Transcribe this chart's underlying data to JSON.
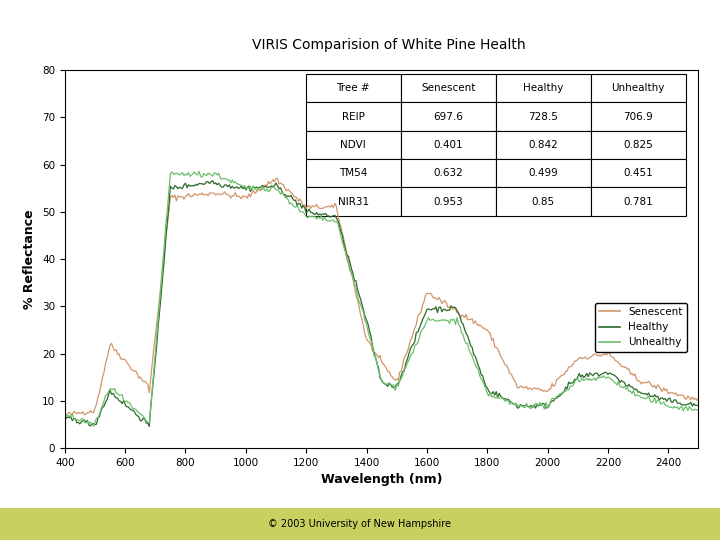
{
  "title": "VIRIS Comparision of White Pine Health",
  "xlabel": "Wavelength (nm)",
  "ylabel": "% Reflectance",
  "footer": "© 2003 University of New Hampshire",
  "ylim": [
    0,
    80
  ],
  "xlim": [
    400,
    2500
  ],
  "yticks": [
    0,
    10,
    20,
    30,
    40,
    50,
    60,
    70,
    80
  ],
  "xticks": [
    400,
    600,
    800,
    1000,
    1200,
    1400,
    1600,
    1800,
    2000,
    2200,
    2400
  ],
  "outer_bg": "#c8d060",
  "inner_bg": "#f0f0f0",
  "plot_bg": "#ffffff",
  "table_data": {
    "headers": [
      "Tree #",
      "Senescent",
      "Healthy",
      "Unhealthy"
    ],
    "rows": [
      [
        "REIP",
        "697.6",
        "728.5",
        "706.9"
      ],
      [
        "NDVI",
        "0.401",
        "0.842",
        "0.825"
      ],
      [
        "TM54",
        "0.632",
        "0.499",
        "0.451"
      ],
      [
        "NIR31",
        "0.953",
        "0.85",
        "0.781"
      ]
    ]
  },
  "line_colors": {
    "senescent": "#d4956a",
    "healthy": "#2d6a2d",
    "unhealthy": "#6dbf6d"
  },
  "legend_labels": [
    "Senescent",
    "Healthy",
    "Unhealthy"
  ]
}
